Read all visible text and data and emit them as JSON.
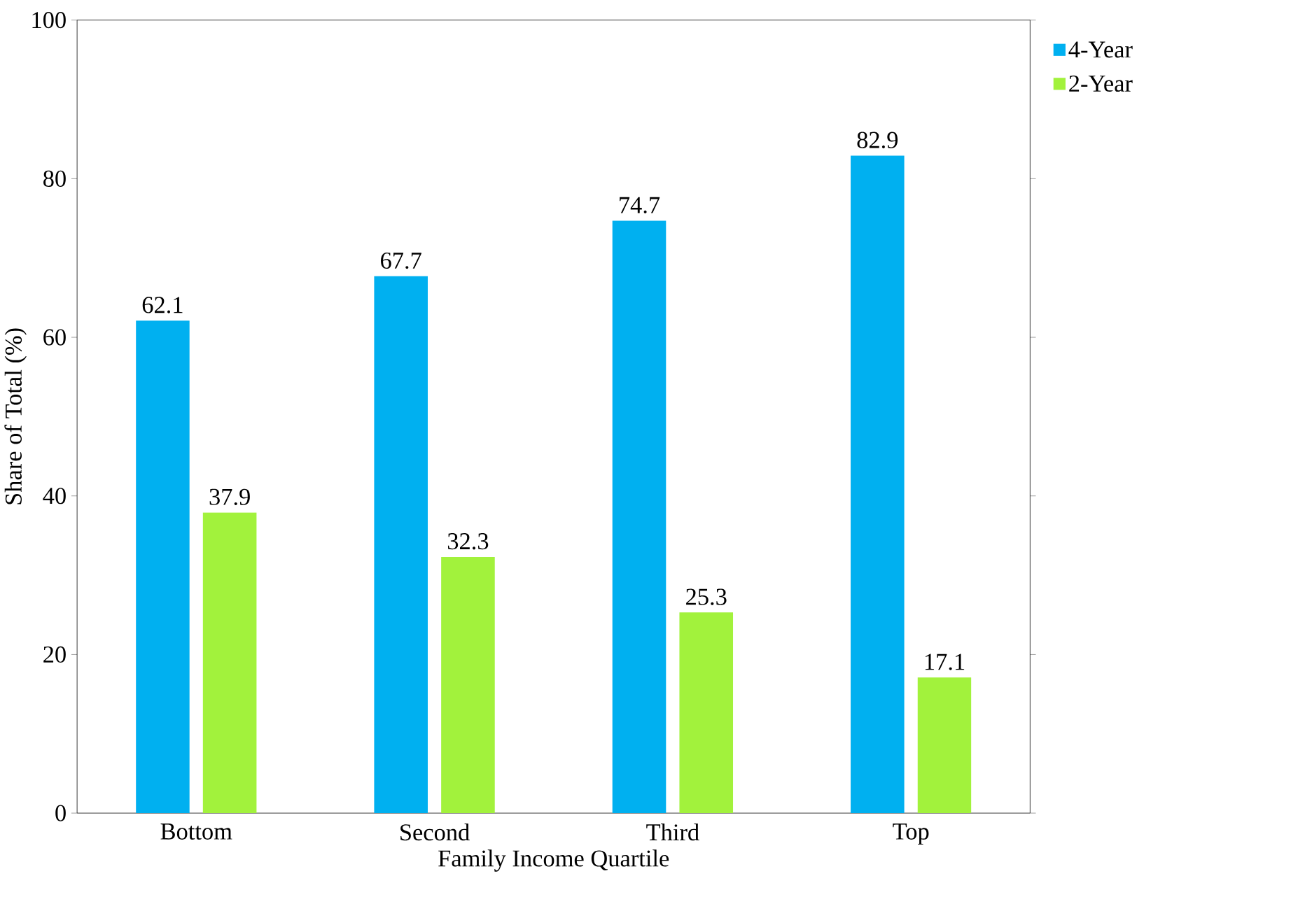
{
  "chart_data": {
    "type": "bar",
    "xlabel": "Family Income Quartile",
    "ylabel": "Share of Total (%)",
    "categories": [
      "Bottom",
      "Second",
      "Third",
      "Top"
    ],
    "series": [
      {
        "name": "4-Year",
        "color": "#00b0f0",
        "values": [
          62.1,
          67.7,
          74.7,
          82.9
        ]
      },
      {
        "name": "2-Year",
        "color": "#a2f23c",
        "values": [
          37.9,
          32.3,
          25.3,
          17.1
        ]
      }
    ],
    "ylim": [
      0,
      100
    ],
    "yticks": [
      0,
      20,
      40,
      60,
      80,
      100
    ],
    "data_labels": true,
    "grid": false,
    "legend": "top right"
  }
}
